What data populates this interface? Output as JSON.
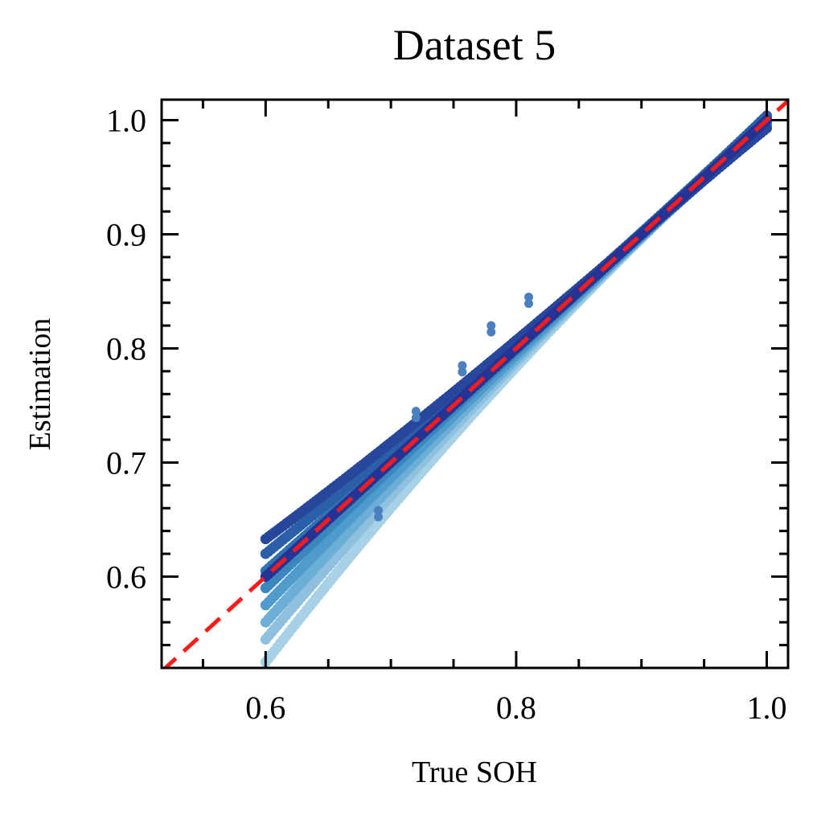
{
  "chart_data": {
    "type": "scatter",
    "title": "Dataset 5",
    "xlabel": "True SOH",
    "ylabel": "Estimation",
    "xlim": [
      0.517,
      1.017
    ],
    "ylim": [
      0.52,
      1.018
    ],
    "xticks": [
      0.6,
      0.8,
      1.0
    ],
    "xtick_labels": [
      "0.6",
      "0.8",
      "1.0"
    ],
    "yticks": [
      0.6,
      0.7,
      0.8,
      0.9,
      1.0
    ],
    "ytick_labels": [
      "0.6",
      "0.7",
      "0.8",
      "0.9",
      "1.0"
    ],
    "grid": false,
    "legend": "none",
    "reference_line": {
      "style": "dashed",
      "color": "#ff1a1a",
      "points": [
        [
          0.517,
          0.517
        ],
        [
          1.017,
          1.017
        ]
      ]
    },
    "point_colors": [
      "#9ecae1",
      "#6baed6",
      "#4292c6",
      "#2171b5",
      "#2d5aa8",
      "#253494"
    ],
    "series": [
      {
        "x_range": [
          0.6,
          1.0
        ],
        "y_at_start": 0.525,
        "y_at_end": 1.0,
        "color": "#a6d1e6"
      },
      {
        "x_range": [
          0.6,
          1.0
        ],
        "y_at_start": 0.545,
        "y_at_end": 0.998,
        "color": "#8fc1de"
      },
      {
        "x_range": [
          0.6,
          1.0
        ],
        "y_at_start": 0.56,
        "y_at_end": 1.002,
        "color": "#6baed6"
      },
      {
        "x_range": [
          0.6,
          1.0
        ],
        "y_at_start": 0.575,
        "y_at_end": 0.995,
        "color": "#4f9bcb"
      },
      {
        "x_range": [
          0.6,
          1.0
        ],
        "y_at_start": 0.59,
        "y_at_end": 1.003,
        "color": "#3c86be"
      },
      {
        "x_range": [
          0.6,
          1.0
        ],
        "y_at_start": 0.605,
        "y_at_end": 0.997,
        "color": "#2f73b2"
      },
      {
        "x_range": [
          0.6,
          1.0
        ],
        "y_at_start": 0.62,
        "y_at_end": 1.004,
        "color": "#2b5fa8"
      },
      {
        "x_range": [
          0.6,
          1.0
        ],
        "y_at_start": 0.633,
        "y_at_end": 0.993,
        "color": "#27479c"
      },
      {
        "x_range": [
          0.6,
          1.0
        ],
        "y_at_start": 0.6,
        "y_at_end": 1.0,
        "color": "#253494"
      }
    ],
    "outliers": [
      {
        "x": 0.72,
        "y": 0.745
      },
      {
        "x": 0.757,
        "y": 0.785
      },
      {
        "x": 0.78,
        "y": 0.82
      },
      {
        "x": 0.81,
        "y": 0.845
      },
      {
        "x": 0.69,
        "y": 0.658
      }
    ]
  }
}
